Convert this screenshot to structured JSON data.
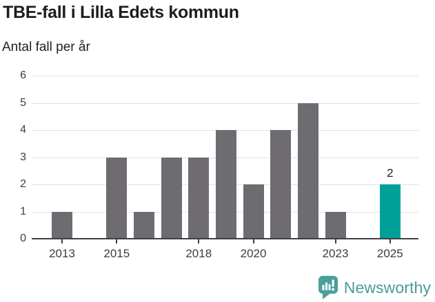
{
  "title": "TBE-fall i Lilla Edets kommun",
  "subtitle": "Antal fall per år",
  "chart_data": {
    "type": "bar",
    "title": "TBE-fall i Lilla Edets kommun",
    "subtitle": "Antal fall per år",
    "categories": [
      "2013",
      "2014",
      "2015",
      "2016",
      "2017",
      "2018",
      "2019",
      "2020",
      "2021",
      "2022",
      "2023",
      "2024",
      "2025"
    ],
    "values": [
      1,
      0,
      3,
      1,
      3,
      3,
      4,
      2,
      4,
      5,
      1,
      0,
      2
    ],
    "ylim": [
      0,
      6
    ],
    "y_tick_labels": [
      "0",
      "1",
      "2",
      "3",
      "4",
      "5",
      "6"
    ],
    "x_tick_labels": [
      "2013",
      "2015",
      "2018",
      "2020",
      "2023",
      "2025"
    ],
    "grid": true,
    "legend": "none",
    "bar_color": "#6e6c71",
    "highlight": {
      "category": "2025",
      "value": 2,
      "label": "2",
      "color": "#00a099"
    }
  },
  "footer": {
    "brand": "Newsworthy",
    "icon": "bar-chart-speech-bubble-icon",
    "brand_color": "#4a9b99",
    "icon_color": "#4aa09e"
  },
  "colors": {
    "gridline": "#e3e1e2",
    "axis": "#3f3e41",
    "tick_label": "#3d3c3e",
    "title_text": "#1d1d1b"
  }
}
